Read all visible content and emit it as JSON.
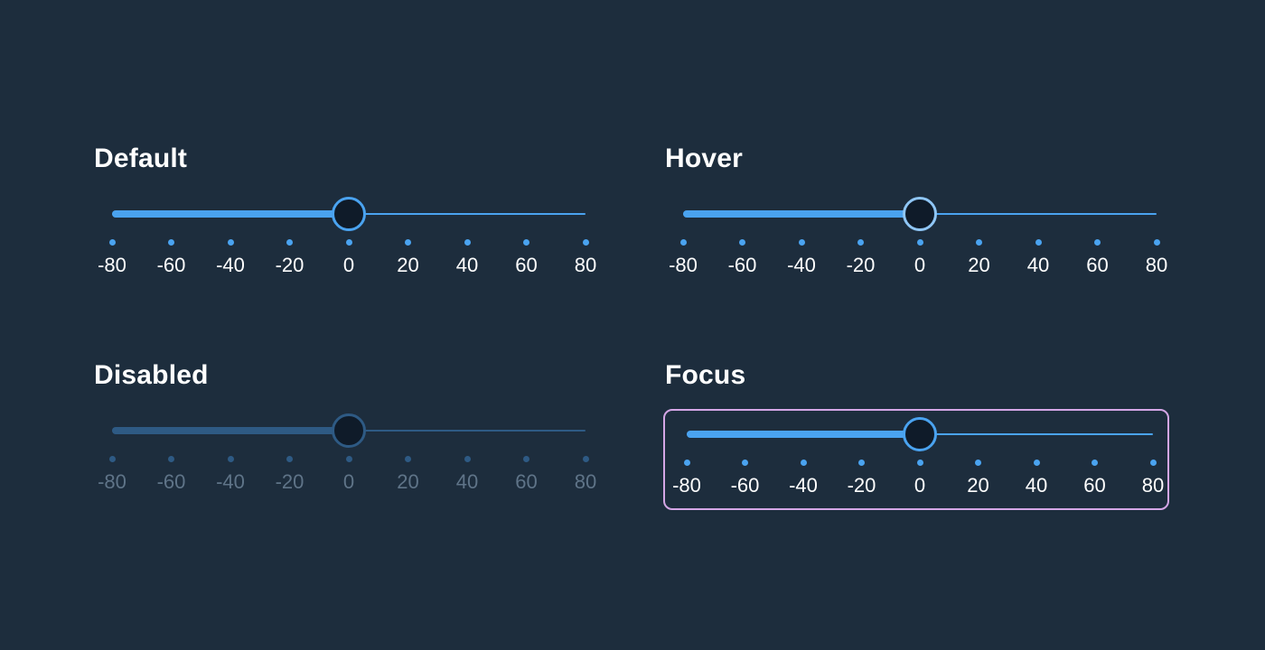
{
  "ticks": [
    "-80",
    "-60",
    "-40",
    "-20",
    "0",
    "20",
    "40",
    "60",
    "80"
  ],
  "colors": {
    "background": "#1d2d3d",
    "accent": "#4aa3f0",
    "thumb_fill": "#0f1b29",
    "hover_thumb_border": "#8fc6f5",
    "disabled_fill": "#2e5a84",
    "disabled_label": "#5f7488",
    "focus_ring": "#d4a6e6",
    "label": "#ffffff"
  },
  "sliders": [
    {
      "id": "default",
      "title": "Default",
      "value": 0,
      "min": -80,
      "max": 80,
      "state": "default"
    },
    {
      "id": "hover",
      "title": "Hover",
      "value": 0,
      "min": -80,
      "max": 80,
      "state": "hover"
    },
    {
      "id": "disabled",
      "title": "Disabled",
      "value": 0,
      "min": -80,
      "max": 80,
      "state": "disabled"
    },
    {
      "id": "focus",
      "title": "Focus",
      "value": 0,
      "min": -80,
      "max": 80,
      "state": "focus"
    }
  ]
}
